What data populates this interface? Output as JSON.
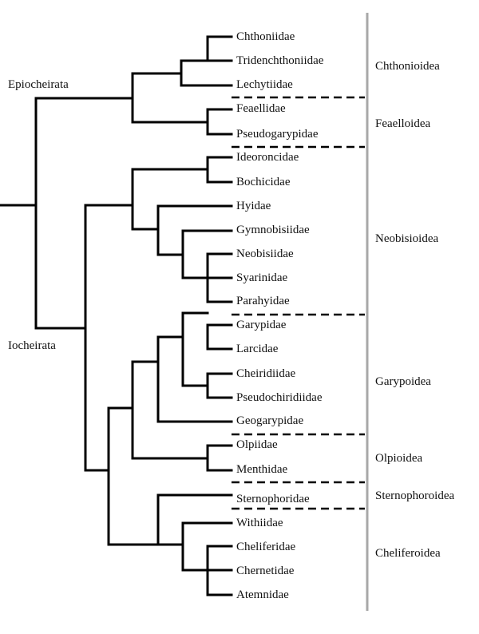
{
  "clades": {
    "epiocheirata": "Epiocheirata",
    "iocheirata": "Iocheirata"
  },
  "families": [
    "Chthoniidae",
    "Tridenchthoniidae",
    "Lechytiidae",
    "Feaellidae",
    "Pseudogarypidae",
    "Ideoroncidae",
    "Bochicidae",
    "Hyidae",
    "Gymnobisiidae",
    "Neobisiidae",
    "Syarinidae",
    "Parahyidae",
    "Garypidae",
    "Larcidae",
    "Cheiridiidae",
    "Pseudochiridiidae",
    "Geogarypidae",
    "Olpiidae",
    "Menthidae",
    "Sternophoridae",
    "Withiidae",
    "Cheliferidae",
    "Chernetidae",
    "Atemnidae"
  ],
  "superfamilies": [
    "Chthonioidea",
    "Feaelloidea",
    "Neobisioidea",
    "Garypoidea",
    "Olpioidea",
    "Sternophoroidea",
    "Cheliferoidea"
  ],
  "colors": {
    "branch": "#000000",
    "separator_line": "#000000",
    "vertical_bar": "#a8a8a8"
  }
}
